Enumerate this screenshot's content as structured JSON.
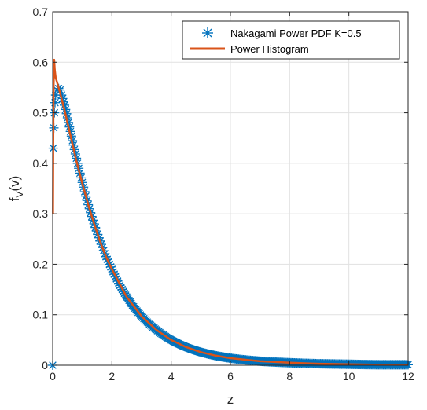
{
  "chart_data": {
    "type": "line",
    "xlabel": "z",
    "ylabel": "f",
    "ylabel_subscript": "V",
    "ylabel_suffix": "(v)",
    "xlim": [
      0,
      12
    ],
    "ylim": [
      0,
      0.7
    ],
    "xticks": [
      0,
      2,
      4,
      6,
      8,
      10,
      12
    ],
    "yticks": [
      0,
      0.1,
      0.2,
      0.3,
      0.4,
      0.5,
      0.6,
      0.7
    ],
    "xtick_labels": [
      "0",
      "2",
      "4",
      "6",
      "8",
      "10",
      "12"
    ],
    "ytick_labels": [
      "0",
      "0.1",
      "0.2",
      "0.3",
      "0.4",
      "0.5",
      "0.6",
      "0.7"
    ],
    "grid": true,
    "legend_position": "top-right",
    "series": [
      {
        "name": "Nakagami Power PDF K=0.5",
        "style": "markers",
        "marker": "asterisk",
        "color": "#0072BD",
        "x": [
          0,
          0.02,
          0.04,
          0.06,
          0.08,
          0.1,
          0.15,
          0.2,
          0.25,
          0.3,
          0.4,
          0.5,
          0.6,
          0.7,
          0.8,
          1.0,
          1.2,
          1.4,
          1.6,
          1.8,
          2.0,
          2.5,
          3.0,
          3.5,
          4.0,
          4.5,
          5.0,
          5.5,
          6.0,
          7.0,
          8.0,
          9.0,
          10.0,
          11.0,
          12.0
        ],
        "y": [
          0,
          0.43,
          0.47,
          0.5,
          0.52,
          0.535,
          0.545,
          0.548,
          0.545,
          0.535,
          0.515,
          0.49,
          0.463,
          0.436,
          0.41,
          0.362,
          0.318,
          0.28,
          0.246,
          0.215,
          0.19,
          0.135,
          0.097,
          0.07,
          0.05,
          0.036,
          0.026,
          0.019,
          0.014,
          0.008,
          0.005,
          0.003,
          0.002,
          0.001,
          0.001
        ]
      },
      {
        "name": "Power Histogram",
        "style": "line",
        "color": "#D95319",
        "x": [
          0.01,
          0.02,
          0.03,
          0.05,
          0.07,
          0.1,
          0.15,
          0.2,
          0.3,
          0.4,
          0.5,
          0.6,
          0.8,
          1.0,
          1.2,
          1.4,
          1.6,
          1.8,
          2.0,
          2.5,
          3.0,
          3.5,
          4.0,
          4.5,
          5.0,
          5.5,
          6.0,
          7.0,
          8.0,
          9.0,
          10.0,
          11.0,
          12.0
        ],
        "y": [
          0.3,
          0.45,
          0.55,
          0.605,
          0.585,
          0.57,
          0.56,
          0.55,
          0.528,
          0.505,
          0.48,
          0.455,
          0.405,
          0.36,
          0.318,
          0.28,
          0.245,
          0.215,
          0.19,
          0.135,
          0.097,
          0.07,
          0.05,
          0.036,
          0.026,
          0.019,
          0.014,
          0.008,
          0.005,
          0.003,
          0.002,
          0.001,
          0.001
        ]
      }
    ]
  }
}
